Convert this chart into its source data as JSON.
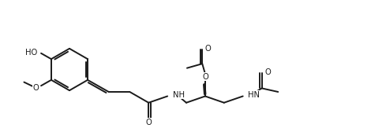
{
  "bg_color": "#ffffff",
  "lc": "#1a1a1a",
  "lw": 1.4,
  "fs": 7.2,
  "figsize": [
    4.7,
    1.77
  ],
  "dpi": 100,
  "xlim": [
    0,
    10.2
  ],
  "ylim": [
    0,
    3.8
  ]
}
